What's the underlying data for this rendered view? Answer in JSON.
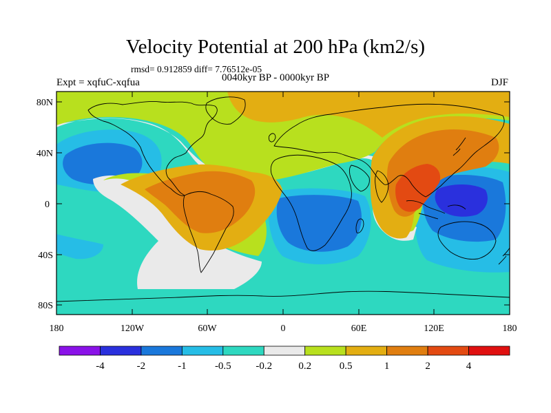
{
  "title": "Velocity Potential at 200 hPa (km2/s)",
  "stats": "rmsd= 0.912859 diff= 7.76512e-05",
  "left_label": "Expt = xqfuC-xqfua",
  "center_label": "0040kyr BP - 0000kyr BP",
  "right_label": "DJF",
  "y_ticks": [
    "80N",
    "40N",
    "0",
    "40S",
    "80S"
  ],
  "x_ticks": [
    "180",
    "120W",
    "60W",
    "0",
    "60E",
    "120E",
    "180"
  ],
  "colorbar": {
    "colors": [
      "#8a12e8",
      "#2a30dd",
      "#1a78db",
      "#26bde6",
      "#2ed8c0",
      "#eaeaea",
      "#b8e01e",
      "#e3ae12",
      "#e07e10",
      "#e34a12",
      "#e01010"
    ],
    "labels": [
      "-4",
      "-2",
      "-1",
      "-0.5",
      "-0.2",
      "0.2",
      "0.5",
      "1",
      "2",
      "4"
    ]
  },
  "palette": {
    "teal": "#2ed8c0",
    "cyan": "#26bde6",
    "blue": "#1a78db",
    "deep_blue": "#2a30dd",
    "white": "#eaeaea",
    "lime": "#b8e01e",
    "gold": "#e3ae12",
    "orange": "#e07e10",
    "red_orange": "#e34a12"
  }
}
